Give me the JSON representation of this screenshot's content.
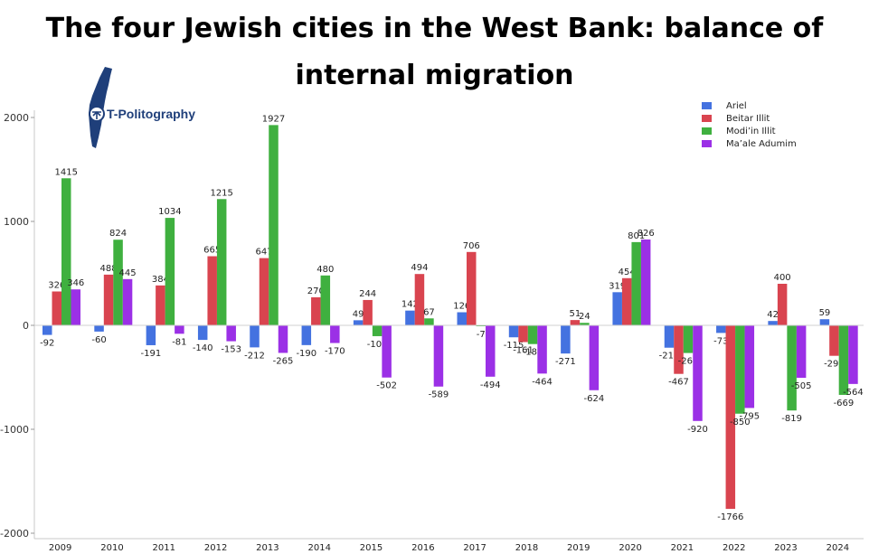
{
  "header": {
    "title": "The four Jewish cities in the West Bank: balance of internal migration"
  },
  "logo": {
    "text": "T-Politography",
    "icon": "israel-map-icon",
    "color": "#1f3f7a"
  },
  "colors": {
    "Ariel": "#4472e0",
    "Beitar Illit": "#d9444f",
    "Modi’in Illit": "#3fb03f",
    "Ma’ale Adumim": "#9b30e6"
  },
  "chart_data": {
    "type": "bar",
    "title": "The four Jewish cities in the West Bank: balance of internal migration",
    "xlabel": "",
    "ylabel": "",
    "categories": [
      "2009",
      "2010",
      "2011",
      "2012",
      "2013",
      "2014",
      "2015",
      "2016",
      "2017",
      "2018",
      "2019",
      "2020",
      "2021",
      "2022",
      "2023",
      "2024"
    ],
    "ylim": [
      -2000,
      2000
    ],
    "yticks": [
      -2000,
      -1000,
      0,
      1000,
      2000
    ],
    "grid": false,
    "legend_position": "top-right",
    "series": [
      {
        "name": "Ariel",
        "values": [
          -92,
          -60,
          -191,
          -140,
          -212,
          -190,
          49,
          142,
          126,
          -115,
          -271,
          319,
          -215,
          -73,
          42,
          59
        ]
      },
      {
        "name": "Beitar Illit",
        "values": [
          326,
          488,
          384,
          665,
          647,
          270,
          244,
          494,
          706,
          -161,
          51,
          454,
          -467,
          -1766,
          400,
          -293
        ]
      },
      {
        "name": "Modi’in Illit",
        "values": [
          1415,
          824,
          1034,
          1215,
          1927,
          480,
          -104,
          67,
          -7,
          -180,
          24,
          801,
          -266,
          -850,
          -819,
          -669
        ]
      },
      {
        "name": "Ma’ale Adumim",
        "values": [
          346,
          445,
          -81,
          -153,
          -265,
          -170,
          -502,
          -589,
          -494,
          -464,
          -624,
          826,
          -920,
          -795,
          -505,
          -564
        ]
      }
    ]
  }
}
